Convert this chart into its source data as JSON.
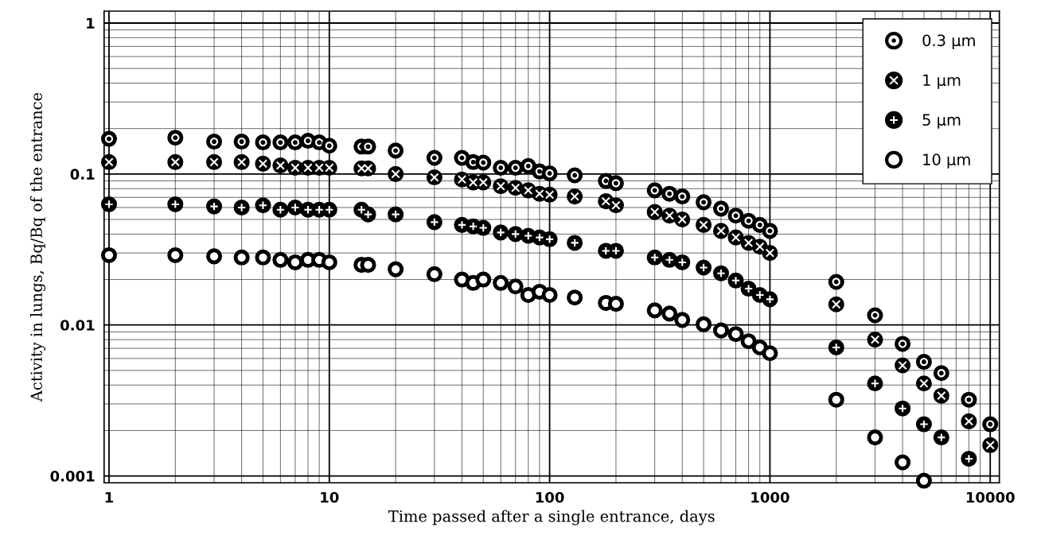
{
  "chart_data": {
    "type": "scatter",
    "xlabel": "Time passed after a single entrance, days",
    "ylabel": "Activity in lungs, Bq/Bq of the entrance",
    "x": [
      1,
      2,
      3,
      4,
      5,
      6,
      7,
      8,
      9,
      10,
      14,
      15,
      20,
      30,
      40,
      45,
      50,
      60,
      70,
      80,
      90,
      100,
      130,
      180,
      200,
      300,
      350,
      400,
      500,
      600,
      700,
      800,
      900,
      1000,
      2000,
      3000,
      4000,
      5000,
      6000,
      8000,
      10000
    ],
    "series": [
      {
        "name": "0.3 μm",
        "color": "#000000",
        "values": [
          0.171,
          0.174,
          0.164,
          0.164,
          0.162,
          0.162,
          0.162,
          0.166,
          0.162,
          0.154,
          0.152,
          0.152,
          0.143,
          0.128,
          0.128,
          0.12,
          0.119,
          0.11,
          0.11,
          0.113,
          0.104,
          0.101,
          0.098,
          0.09,
          0.087,
          0.078,
          0.074,
          0.071,
          0.065,
          0.059,
          0.053,
          0.049,
          0.046,
          0.042,
          0.0193,
          0.0116,
          0.0075,
          0.0057,
          0.0048,
          0.0032,
          0.0022
        ]
      },
      {
        "name": "1 μm",
        "color": "#000000",
        "values": [
          0.12,
          0.12,
          0.12,
          0.12,
          0.117,
          0.114,
          0.11,
          0.11,
          0.11,
          0.11,
          0.109,
          0.109,
          0.1,
          0.095,
          0.092,
          0.088,
          0.088,
          0.083,
          0.081,
          0.078,
          0.074,
          0.073,
          0.071,
          0.066,
          0.062,
          0.056,
          0.053,
          0.05,
          0.046,
          0.042,
          0.038,
          0.035,
          0.033,
          0.03,
          0.0137,
          0.008,
          0.0054,
          0.0041,
          0.0034,
          0.0023,
          0.0016
        ]
      },
      {
        "name": "5 μm",
        "color": "#000000",
        "values": [
          0.063,
          0.063,
          0.061,
          0.06,
          0.062,
          0.058,
          0.06,
          0.058,
          0.058,
          0.058,
          0.058,
          0.054,
          0.054,
          0.048,
          0.046,
          0.045,
          0.044,
          0.041,
          0.04,
          0.039,
          0.038,
          0.037,
          0.035,
          0.031,
          0.031,
          0.028,
          0.027,
          0.026,
          0.024,
          0.022,
          0.0197,
          0.0174,
          0.0158,
          0.0148,
          0.0071,
          0.0041,
          0.0028,
          0.0022,
          0.0018,
          0.0013,
          null
        ]
      },
      {
        "name": "10 μm",
        "color": "#000000",
        "values": [
          0.029,
          0.029,
          0.0285,
          0.028,
          0.028,
          0.027,
          0.026,
          0.027,
          0.027,
          0.026,
          0.025,
          0.025,
          0.0234,
          0.0217,
          0.02,
          0.019,
          0.02,
          0.019,
          0.018,
          0.0158,
          0.0166,
          0.0158,
          0.0152,
          0.014,
          0.0138,
          0.0125,
          0.0119,
          0.0108,
          0.0101,
          0.0092,
          0.0087,
          0.0078,
          0.0071,
          0.0065,
          0.0032,
          0.0018,
          0.00123,
          0.00093,
          null,
          null,
          null
        ]
      }
    ],
    "log": "xy",
    "xlim": [
      0.95,
      11000
    ],
    "ylim": [
      0.0009,
      1.2
    ],
    "xticks": [
      1,
      10,
      100,
      1000,
      10000
    ],
    "yticks": [
      0.001,
      0.01,
      0.1,
      1
    ],
    "grid": true,
    "legend": "top right",
    "marker": "circle"
  }
}
